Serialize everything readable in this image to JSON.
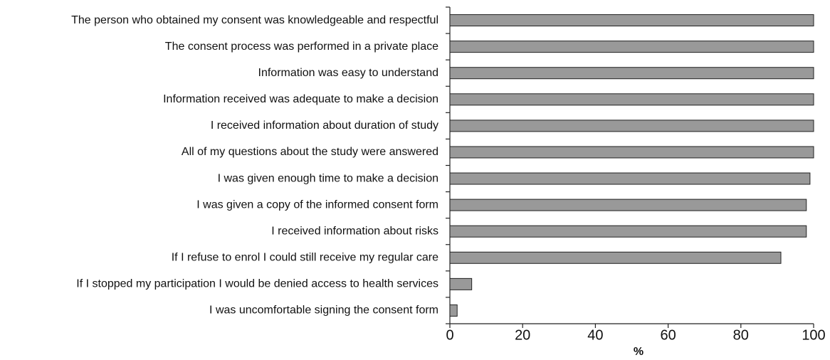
{
  "chart_data": {
    "type": "bar",
    "orientation": "horizontal",
    "categories": [
      "The person who obtained my consent was knowledgeable and respectful",
      "The consent process was performed in a private place",
      "Information was easy to understand",
      "Information received was adequate to make a decision",
      "I received information about duration of study",
      "All of my questions about the study were answered",
      "I was given enough time to make a decision",
      "I was given a copy of the informed consent form",
      "I received information about risks",
      "If I refuse to enrol I could still receive my regular care",
      "If I stopped my participation I would be denied access to health services",
      "I was uncomfortable signing the consent form"
    ],
    "values": [
      100,
      100,
      100,
      100,
      100,
      100,
      99,
      98,
      98,
      91,
      6,
      2
    ],
    "color": "#999999",
    "xlabel": "%",
    "xlim": [
      0,
      100
    ],
    "xticks": [
      0,
      20,
      40,
      60,
      80,
      100
    ]
  }
}
